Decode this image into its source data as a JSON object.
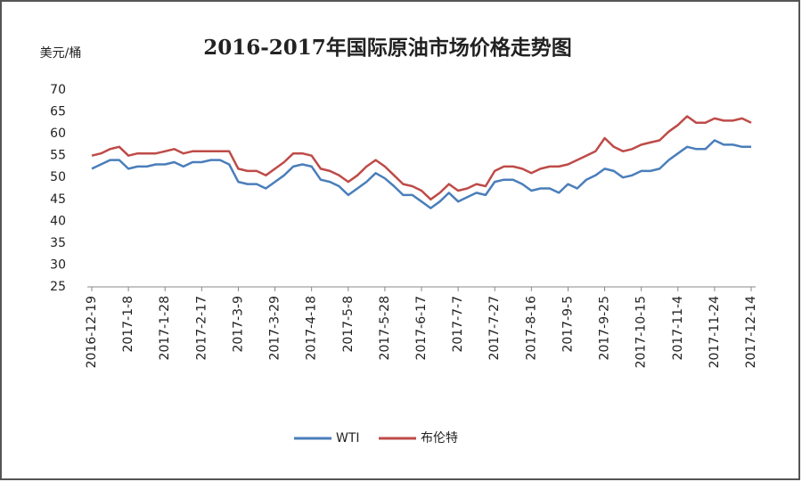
{
  "chart_data": {
    "type": "line",
    "title": "2016-2017年国际原油市场价格走势图",
    "y_label": "美元/桶",
    "categories": [
      "2016-12-19",
      null,
      null,
      null,
      "2017-1-8",
      null,
      null,
      null,
      "2017-1-28",
      null,
      null,
      null,
      "2017-2-17",
      null,
      null,
      null,
      "2017-3-9",
      null,
      null,
      null,
      "2017-3-29",
      null,
      null,
      null,
      "2017-4-18",
      null,
      null,
      null,
      "2017-5-8",
      null,
      null,
      null,
      "2017-5-28",
      null,
      null,
      null,
      "2017-6-17",
      null,
      null,
      null,
      "2017-7-7",
      null,
      null,
      null,
      "2017-7-27",
      null,
      null,
      null,
      "2017-8-16",
      null,
      null,
      null,
      "2017-9-5",
      null,
      null,
      null,
      "2017-9-25",
      null,
      null,
      null,
      "2017-10-15",
      null,
      null,
      null,
      "2017-11-4",
      null,
      null,
      null,
      "2017-11-24",
      null,
      null,
      null,
      "2017-12-14"
    ],
    "series": [
      {
        "name": "WTI",
        "color": "#4a7ebb",
        "values": [
          52,
          53,
          54,
          54,
          52,
          52.5,
          52.5,
          53,
          53,
          53.5,
          52.5,
          53.5,
          53.5,
          54,
          54,
          53,
          49,
          48.5,
          48.5,
          47.5,
          49,
          50.5,
          52.5,
          53,
          52.5,
          49.5,
          49,
          48,
          46,
          47.5,
          49,
          51,
          49.8,
          48,
          46,
          46,
          44.5,
          43,
          44.5,
          46.5,
          44.5,
          45.5,
          46.5,
          46,
          49,
          49.5,
          49.5,
          48.5,
          47,
          47.5,
          47.5,
          46.5,
          48.5,
          47.5,
          49.5,
          50.5,
          52,
          51.5,
          50,
          50.5,
          51.5,
          51.5,
          52,
          54,
          55.5,
          57,
          56.5,
          56.5,
          58.5,
          57.5,
          57.5,
          57,
          57
        ]
      },
      {
        "name": "布伦特",
        "color": "#be4b48",
        "values": [
          55,
          55.5,
          56.5,
          57,
          55,
          55.5,
          55.5,
          55.5,
          56,
          56.5,
          55.5,
          56,
          56,
          56,
          56,
          56,
          52,
          51.5,
          51.5,
          50.5,
          52,
          53.5,
          55.5,
          55.5,
          55,
          52,
          51.5,
          50.5,
          49,
          50.5,
          52.5,
          54,
          52.5,
          50.5,
          48.5,
          48,
          47,
          45,
          46.5,
          48.5,
          47,
          47.5,
          48.5,
          48,
          51.5,
          52.5,
          52.5,
          52,
          51,
          52,
          52.5,
          52.5,
          53,
          54,
          55,
          56,
          59,
          57,
          56,
          56.5,
          57.5,
          58,
          58.5,
          60.5,
          62,
          64,
          62.5,
          62.5,
          63.5,
          63,
          63,
          63.5,
          62.5
        ]
      }
    ],
    "ylim": [
      25,
      70
    ],
    "yticks": [
      25,
      30,
      35,
      40,
      45,
      50,
      55,
      60,
      65,
      70
    ],
    "grid": false,
    "legend": "bottom"
  }
}
